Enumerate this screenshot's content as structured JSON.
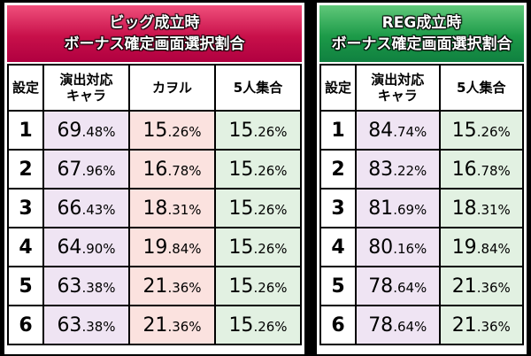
{
  "tables": [
    {
      "title": [
        "ビッグ成立時",
        "ボーナス確定画面選択割合"
      ],
      "headers": [
        "設定",
        "演出対応キャラ",
        "カヲル",
        "5人集合"
      ],
      "rows": [
        [
          "1",
          "69.48%",
          "15.26%",
          "15.26%"
        ],
        [
          "2",
          "67.96%",
          "16.78%",
          "15.26%"
        ],
        [
          "3",
          "66.43%",
          "18.31%",
          "15.26%"
        ],
        [
          "4",
          "64.90%",
          "19.84%",
          "15.26%"
        ],
        [
          "5",
          "63.38%",
          "21.36%",
          "15.26%"
        ],
        [
          "6",
          "63.38%",
          "21.36%",
          "15.26%"
        ]
      ]
    },
    {
      "title": [
        "REG成立時",
        "ボーナス確定画面選択割合"
      ],
      "headers": [
        "設定",
        "演出対応キャラ",
        "5人集合"
      ],
      "rows": [
        [
          "1",
          "84.74%",
          "15.26%"
        ],
        [
          "2",
          "83.22%",
          "16.78%"
        ],
        [
          "3",
          "81.69%",
          "18.31%"
        ],
        [
          "4",
          "80.16%",
          "19.84%"
        ],
        [
          "5",
          "78.64%",
          "21.36%"
        ],
        [
          "6",
          "78.64%",
          "21.36%"
        ]
      ]
    }
  ]
}
